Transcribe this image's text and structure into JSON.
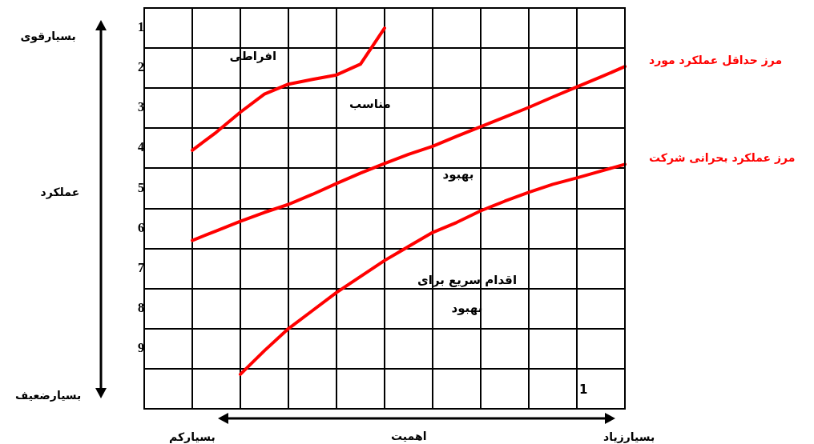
{
  "chart_data": {
    "type": "line",
    "xlabel": "اهمیت",
    "categories": [
      null,
      null,
      null,
      null,
      null,
      null,
      null,
      null,
      null,
      null,
      null,
      null,
      null,
      null,
      null,
      null,
      null,
      null,
      null,
      null,
      null
    ],
    "ylim": [
      10.5,
      0.5
    ],
    "yticks": [
      {
        "value": 0.5,
        "label": null
      },
      1,
      {
        "value": 1.5,
        "label": null
      },
      2,
      {
        "value": 2.5,
        "label": null
      },
      3,
      {
        "value": 3.5,
        "label": null
      },
      4,
      {
        "value": 4.5,
        "label": null
      },
      5,
      {
        "value": 5.5,
        "label": null
      },
      6,
      {
        "value": 6.5,
        "label": null
      },
      7,
      {
        "value": 7.5,
        "label": null
      },
      8,
      {
        "value": 8.5,
        "label": null
      },
      9,
      {
        "value": 9.5,
        "label": null
      },
      {
        "value": 10.5,
        "label": null
      }
    ],
    "tick_labels": "y",
    "grid": true,
    "legend": false,
    "marker": "none",
    "line_style": "solid",
    "series": [
      {
        "color": "#ff0000",
        "values": [
          null,
          null,
          4.05,
          3.6,
          3.1,
          2.65,
          2.4,
          2.28,
          2.17,
          1.9,
          1.0,
          null,
          null,
          null,
          null,
          null,
          null,
          null,
          null,
          null,
          null
        ]
      },
      {
        "name": "مرز حداقل عملکرد مورد",
        "color": "#ff0000",
        "values": [
          null,
          null,
          6.3,
          6.06,
          5.82,
          5.6,
          5.4,
          5.15,
          4.88,
          4.62,
          4.38,
          4.15,
          3.95,
          3.7,
          3.46,
          3.22,
          2.98,
          2.72,
          2.47,
          2.22,
          1.96
        ]
      },
      {
        "name": "مرز عملکرد بحرانی شرکت",
        "color": "#ff0000",
        "values": [
          null,
          null,
          null,
          null,
          9.64,
          9.05,
          8.5,
          8.05,
          7.6,
          7.2,
          6.8,
          6.45,
          6.1,
          5.85,
          5.56,
          5.32,
          5.1,
          4.9,
          4.74,
          4.57,
          4.4
        ]
      }
    ],
    "annotations": [
      "بسیارقوی",
      "بسیارضعیف",
      "بسیارکم",
      "بسیارزیاد",
      "افراطی",
      "مناسب",
      "بهبود",
      "اقدام سریع برای",
      "بهبود",
      "1",
      "عملکرد"
    ]
  }
}
